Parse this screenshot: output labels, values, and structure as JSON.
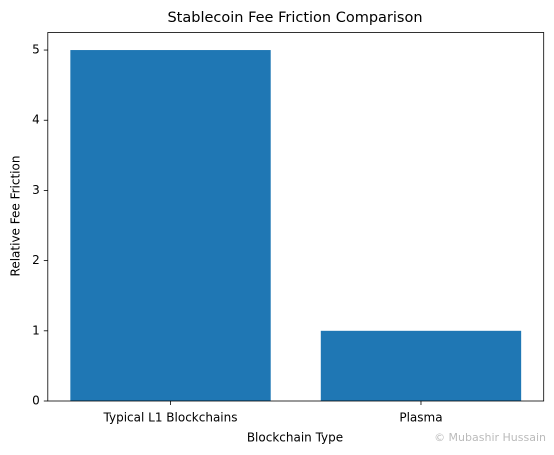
{
  "chart_data": {
    "type": "bar",
    "title": "Stablecoin Fee Friction Comparison",
    "x_label": "Blockchain Type",
    "y_label": "Relative Fee Friction",
    "categories": [
      "Typical L1 Blockchains",
      "Plasma"
    ],
    "values": [
      5,
      1
    ],
    "color": "#1f77b4",
    "ylim": [
      0,
      5.25
    ],
    "yticks": [
      0,
      1,
      2,
      3,
      4,
      5
    ],
    "grid": false,
    "watermark": "© Mubashir Hussain"
  }
}
